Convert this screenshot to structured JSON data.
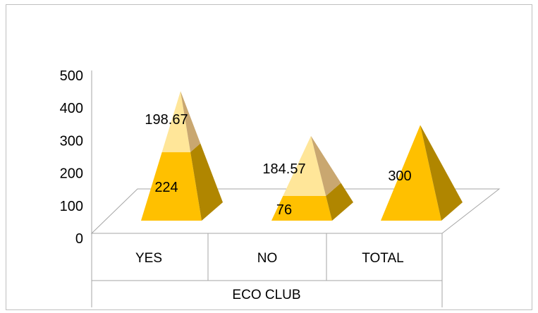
{
  "chart_data": {
    "type": "bar",
    "shape": "pyramid",
    "stacked": true,
    "categories": [
      "YES",
      "NO",
      "TOTAL"
    ],
    "series": [
      {
        "values": [
          224,
          76,
          300
        ]
      },
      {
        "values": [
          198.67,
          184.57,
          null
        ]
      }
    ],
    "data_labels": [
      [
        "224",
        "76",
        "300"
      ],
      [
        "198.67",
        "184.57",
        ""
      ]
    ],
    "ylim": [
      0,
      500
    ],
    "yticks": [
      0,
      100,
      200,
      300,
      400,
      500
    ],
    "xlabel": "ECO CLUB",
    "ylabel": "",
    "title": "",
    "legend": false,
    "grid": false,
    "colors": {
      "base_front": "#FFC000",
      "base_side": "#B08600",
      "top_front": "#FFE699",
      "top_side": "#C9A770",
      "axis": "#A6A6A6"
    }
  }
}
